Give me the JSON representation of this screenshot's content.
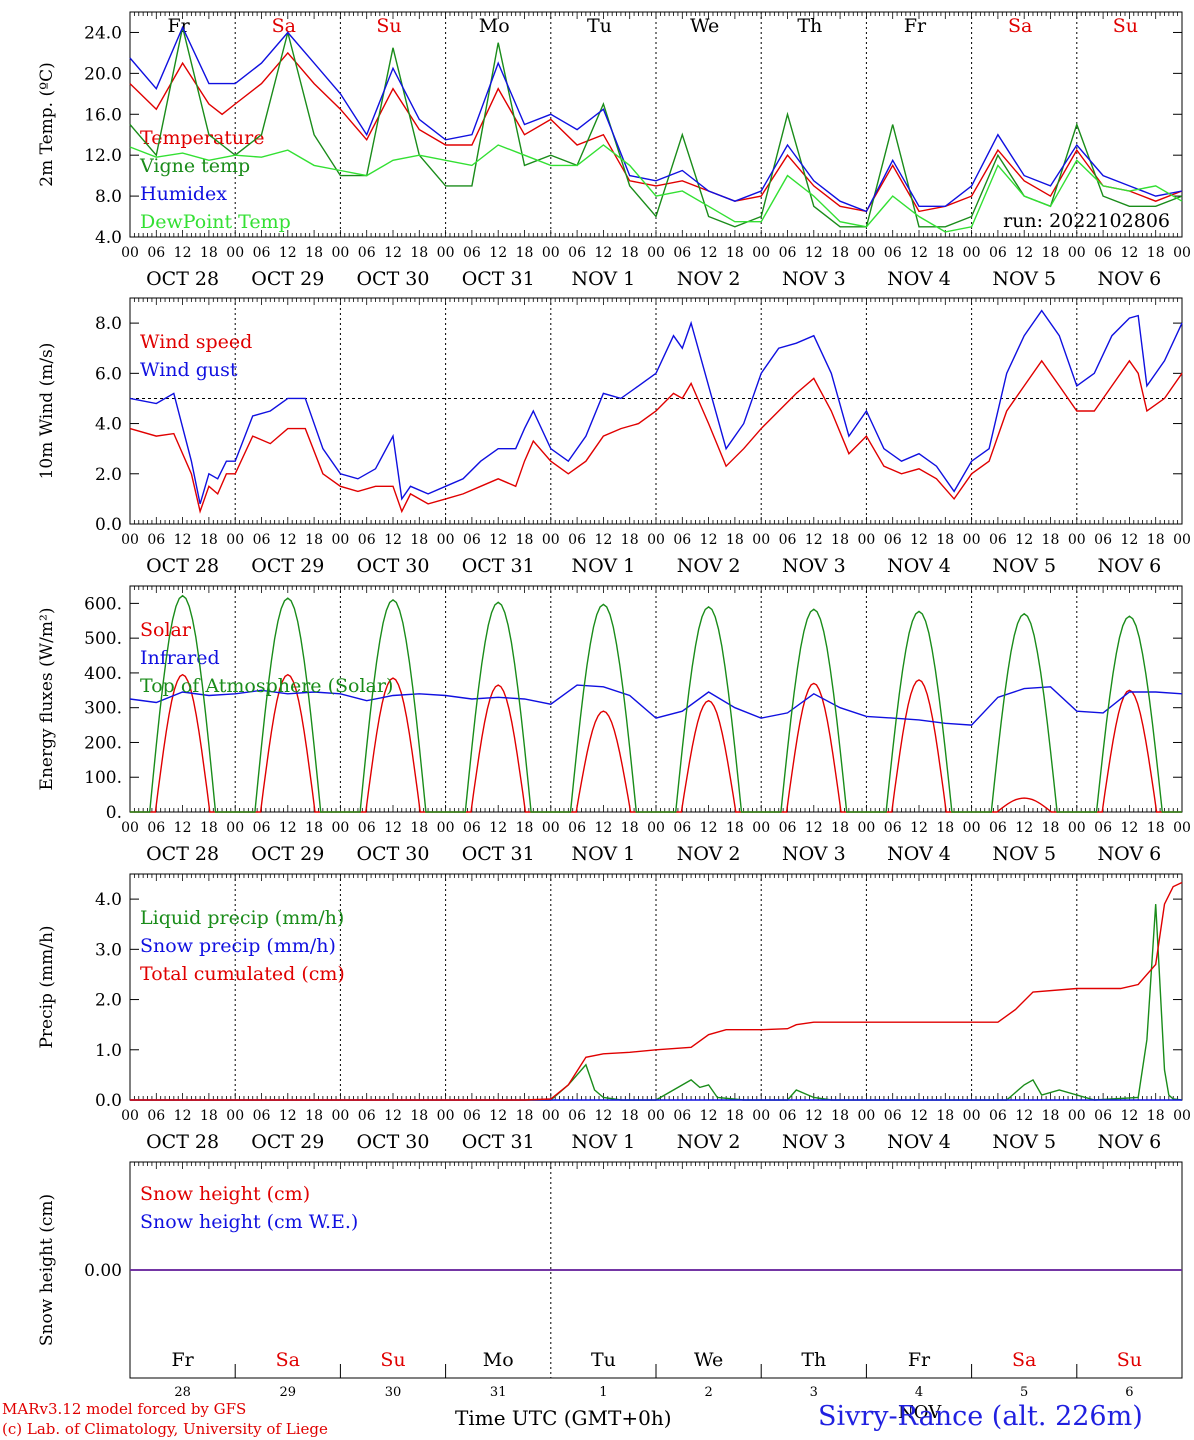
{
  "footer": {
    "credit_line1": "MARv3.12 model forced by GFS",
    "credit_line2": "(c) Lab. of Climatology, University of Liege",
    "axis_title": "Time UTC (GMT+0h)",
    "station": "Sivry-Rance (alt. 226m)",
    "month_overlap": "NOV"
  },
  "colors": {
    "red": "#e00000",
    "green": "#1a8c1a",
    "blue": "#1010e0",
    "lightgreen": "#33e033",
    "purple": "#7030a0",
    "weekend": "#e00000",
    "weekday": "#000000"
  },
  "time": {
    "days": [
      "Fr",
      "Sa",
      "Su",
      "Mo",
      "Tu",
      "We",
      "Th",
      "Fr",
      "Sa",
      "Su"
    ],
    "weekend_flags": [
      false,
      true,
      true,
      false,
      false,
      false,
      false,
      false,
      true,
      true
    ],
    "dates": [
      "OCT 28",
      "OCT 29",
      "OCT 30",
      "OCT 31",
      "NOV 1",
      "NOV 2",
      "NOV 3",
      "NOV 4",
      "NOV 5",
      "NOV 6"
    ],
    "day_numbers": [
      "28",
      "29",
      "30",
      "31",
      "1",
      "2",
      "3",
      "4",
      "5",
      "6"
    ],
    "hour_labels": [
      "00",
      "06",
      "12",
      "18"
    ],
    "end_label": "00"
  },
  "chart_data": [
    {
      "type": "line",
      "ylabel": "2m Temp. (ºC)",
      "ylim": [
        4,
        26
      ],
      "yticks": [
        "4.0",
        "8.0",
        "12.0",
        "16.0",
        "20.0",
        "24.0"
      ],
      "annotation": "run: 2022102806",
      "x_unit": "hours since OCT 28 00 UTC",
      "series": [
        {
          "name": "Temperature",
          "color": "red",
          "x": [
            0,
            6,
            12,
            18,
            21,
            24,
            30,
            36,
            42,
            48,
            54,
            60,
            66,
            72,
            78,
            84,
            90,
            96,
            102,
            108,
            114,
            120,
            126,
            132,
            138,
            144,
            150,
            156,
            162,
            168,
            174,
            180,
            186,
            192,
            198,
            204,
            210,
            216,
            222,
            228,
            234,
            240
          ],
          "y": [
            19,
            16.5,
            21,
            17,
            16,
            17,
            19,
            22,
            19,
            16.5,
            13.5,
            18.5,
            14.5,
            13,
            13,
            18.5,
            14,
            15.5,
            13,
            14,
            9.5,
            9,
            9.5,
            8.5,
            7.5,
            8,
            12,
            9,
            7,
            6.5,
            11,
            6.5,
            7,
            8,
            12.5,
            9.5,
            8,
            12.5,
            9,
            8.5,
            7.5,
            8.5
          ]
        },
        {
          "name": "Vigne temp",
          "color": "green",
          "x": [
            0,
            6,
            12,
            18,
            21,
            24,
            30,
            36,
            42,
            48,
            54,
            60,
            66,
            72,
            78,
            84,
            90,
            96,
            102,
            108,
            114,
            120,
            126,
            132,
            138,
            144,
            150,
            156,
            162,
            168,
            174,
            180,
            186,
            192,
            198,
            204,
            210,
            216,
            222,
            228,
            234,
            240
          ],
          "y": [
            15,
            12,
            24.5,
            14,
            13,
            12,
            14,
            24,
            14,
            10,
            10,
            22.5,
            12,
            9,
            9,
            23,
            11,
            12,
            11,
            17,
            9,
            6,
            14,
            6,
            5,
            6,
            16,
            7,
            5,
            5,
            15,
            5,
            5,
            6,
            12,
            8,
            7,
            15,
            8,
            7,
            7,
            8
          ]
        },
        {
          "name": "Humidex",
          "color": "blue",
          "x": [
            0,
            6,
            12,
            18,
            21,
            24,
            30,
            36,
            42,
            48,
            54,
            60,
            66,
            72,
            78,
            84,
            90,
            96,
            102,
            108,
            114,
            120,
            126,
            132,
            138,
            144,
            150,
            156,
            162,
            168,
            174,
            180,
            186,
            192,
            198,
            204,
            210,
            216,
            222,
            228,
            234,
            240
          ],
          "y": [
            21.5,
            18.5,
            24.5,
            19,
            19,
            19,
            21,
            24,
            21,
            18,
            14,
            20.5,
            15.5,
            13.5,
            14,
            21,
            15,
            16,
            14.5,
            16.5,
            10,
            9.5,
            10.5,
            8.5,
            7.5,
            8.5,
            13,
            9.5,
            7.5,
            6.5,
            11.5,
            7,
            7,
            9,
            14,
            10,
            9,
            13,
            10,
            9,
            8,
            8.5
          ]
        },
        {
          "name": "DewPoint Temp",
          "color": "lightgreen",
          "x": [
            0,
            6,
            12,
            18,
            24,
            30,
            36,
            42,
            48,
            54,
            60,
            66,
            72,
            78,
            84,
            90,
            96,
            102,
            108,
            114,
            120,
            126,
            132,
            138,
            144,
            150,
            156,
            162,
            168,
            174,
            180,
            186,
            192,
            198,
            204,
            210,
            216,
            222,
            228,
            234,
            240
          ],
          "y": [
            12.8,
            11.8,
            12.2,
            11.5,
            12,
            11.8,
            12.5,
            11,
            10.5,
            10,
            11.5,
            12,
            11.5,
            11,
            13,
            12,
            11,
            11,
            13,
            11,
            8,
            8.5,
            7,
            5.5,
            5.5,
            10,
            8,
            5.5,
            5,
            8,
            6,
            4.5,
            5,
            11,
            8,
            7,
            11.5,
            9,
            8.5,
            9,
            7.5
          ]
        }
      ]
    },
    {
      "type": "line",
      "ylabel": "10m Wind (m/s)",
      "ylim": [
        0,
        9
      ],
      "yticks": [
        "0.0",
        "2.0",
        "4.0",
        "6.0",
        "8.0"
      ],
      "reference_line": 5,
      "x_unit": "hours since OCT 28 00 UTC",
      "series": [
        {
          "name": "Wind speed",
          "color": "red",
          "x": [
            0,
            6,
            10,
            14,
            16,
            18,
            20,
            22,
            24,
            28,
            32,
            36,
            40,
            44,
            48,
            52,
            56,
            60,
            62,
            64,
            68,
            72,
            76,
            80,
            84,
            88,
            90,
            92,
            96,
            100,
            104,
            108,
            112,
            116,
            120,
            124,
            126,
            128,
            132,
            136,
            140,
            144,
            148,
            152,
            156,
            160,
            164,
            168,
            172,
            176,
            180,
            184,
            188,
            192,
            196,
            200,
            204,
            208,
            212,
            216,
            220,
            224,
            228,
            230,
            232,
            236,
            240
          ],
          "y": [
            3.8,
            3.5,
            3.6,
            2,
            0.5,
            1.5,
            1.2,
            2,
            2,
            3.5,
            3.2,
            3.8,
            3.8,
            2,
            1.5,
            1.3,
            1.5,
            1.5,
            0.5,
            1.2,
            0.8,
            1.0,
            1.2,
            1.5,
            1.8,
            1.5,
            2.5,
            3.3,
            2.5,
            2,
            2.5,
            3.5,
            3.8,
            4,
            4.5,
            5.2,
            5,
            5.6,
            4,
            2.3,
            3,
            3.8,
            4.5,
            5.2,
            5.8,
            4.5,
            2.8,
            3.5,
            2.3,
            2,
            2.2,
            1.8,
            1,
            2,
            2.5,
            4.5,
            5.5,
            6.5,
            5.5,
            4.5,
            4.5,
            5.5,
            6.5,
            6,
            4.5,
            5,
            6
          ]
        },
        {
          "name": "Wind gust",
          "color": "blue",
          "x": [
            0,
            6,
            10,
            14,
            16,
            18,
            20,
            22,
            24,
            28,
            32,
            36,
            40,
            44,
            48,
            52,
            56,
            60,
            62,
            64,
            68,
            72,
            76,
            80,
            84,
            88,
            90,
            92,
            96,
            100,
            104,
            108,
            112,
            116,
            120,
            124,
            126,
            128,
            132,
            136,
            140,
            144,
            148,
            152,
            156,
            160,
            164,
            168,
            172,
            176,
            180,
            184,
            188,
            192,
            196,
            200,
            204,
            208,
            212,
            216,
            220,
            224,
            228,
            230,
            232,
            236,
            240
          ],
          "y": [
            5,
            4.8,
            5.2,
            2.5,
            0.8,
            2,
            1.8,
            2.5,
            2.5,
            4.3,
            4.5,
            5,
            5,
            3,
            2,
            1.8,
            2.2,
            3.5,
            1,
            1.5,
            1.2,
            1.5,
            1.8,
            2.5,
            3,
            3,
            3.8,
            4.5,
            3,
            2.5,
            3.5,
            5.2,
            5,
            5.5,
            6,
            7.5,
            7,
            8,
            5.5,
            3,
            4,
            6,
            7,
            7.2,
            7.5,
            6,
            3.5,
            4.5,
            3,
            2.5,
            2.8,
            2.3,
            1.3,
            2.5,
            3,
            6,
            7.5,
            8.5,
            7.5,
            5.5,
            6,
            7.5,
            8.2,
            8.3,
            5.5,
            6.5,
            8
          ]
        }
      ]
    },
    {
      "type": "line",
      "ylabel": "Energy fluxes (W/m²)",
      "ylim": [
        0,
        650
      ],
      "yticks": [
        "0.",
        "100.",
        "200.",
        "300.",
        "400.",
        "500.",
        "600."
      ],
      "x_unit": "hours since OCT 28 00 UTC",
      "series": [
        {
          "name": "Solar",
          "color": "red",
          "peaks": [
            {
              "h": 12,
              "v": 395
            },
            {
              "h": 36,
              "v": 395
            },
            {
              "h": 60,
              "v": 385
            },
            {
              "h": 84,
              "v": 365
            },
            {
              "h": 108,
              "v": 290
            },
            {
              "h": 132,
              "v": 320
            },
            {
              "h": 156,
              "v": 370
            },
            {
              "h": 180,
              "v": 380
            },
            {
              "h": 204,
              "v": 40
            },
            {
              "h": 228,
              "v": 350
            }
          ]
        },
        {
          "name": "Infrared",
          "color": "blue",
          "x": [
            0,
            6,
            12,
            18,
            24,
            30,
            36,
            42,
            48,
            54,
            60,
            66,
            72,
            78,
            84,
            90,
            96,
            102,
            108,
            114,
            120,
            126,
            132,
            138,
            144,
            150,
            156,
            162,
            168,
            174,
            180,
            186,
            192,
            198,
            204,
            210,
            216,
            222,
            228,
            234,
            240
          ],
          "y": [
            325,
            315,
            345,
            335,
            340,
            350,
            340,
            345,
            340,
            320,
            335,
            340,
            335,
            325,
            330,
            325,
            310,
            365,
            360,
            335,
            270,
            290,
            345,
            300,
            270,
            285,
            340,
            300,
            275,
            270,
            265,
            255,
            250,
            330,
            355,
            360,
            290,
            285,
            345,
            345,
            340
          ]
        },
        {
          "name": "Top of Atmosphere (Solar)",
          "color": "green",
          "peaks": [
            {
              "h": 12,
              "v": 622
            },
            {
              "h": 36,
              "v": 615
            },
            {
              "h": 60,
              "v": 610
            },
            {
              "h": 84,
              "v": 603
            },
            {
              "h": 108,
              "v": 597
            },
            {
              "h": 132,
              "v": 590
            },
            {
              "h": 156,
              "v": 583
            },
            {
              "h": 180,
              "v": 577
            },
            {
              "h": 204,
              "v": 570
            },
            {
              "h": 228,
              "v": 563
            }
          ]
        }
      ]
    },
    {
      "type": "line",
      "ylabel": "Precip (mm/h)",
      "ylim": [
        0,
        4.5
      ],
      "yticks": [
        "0.0",
        "1.0",
        "2.0",
        "3.0",
        "4.0"
      ],
      "x_unit": "hours since OCT 28 00 UTC",
      "series": [
        {
          "name": "Liquid precip (mm/h)",
          "color": "green",
          "x": [
            0,
            96,
            100,
            104,
            106,
            108,
            112,
            120,
            128,
            130,
            132,
            134,
            140,
            150,
            152,
            156,
            160,
            200,
            204,
            206,
            208,
            212,
            220,
            230,
            232,
            234,
            236,
            237,
            238,
            240
          ],
          "y": [
            0,
            0,
            0.3,
            0.7,
            0.2,
            0.05,
            0,
            0,
            0.4,
            0.25,
            0.3,
            0.05,
            0,
            0,
            0.2,
            0.05,
            0,
            0,
            0.3,
            0.4,
            0.1,
            0.2,
            0,
            0.05,
            1.2,
            3.9,
            0.6,
            0.1,
            0.02,
            0
          ]
        },
        {
          "name": "Snow precip (mm/h)",
          "color": "blue",
          "x": [
            0,
            240
          ],
          "y": [
            0,
            0
          ]
        },
        {
          "name": "Total cumulated (cm)",
          "color": "red",
          "x": [
            0,
            90,
            96,
            100,
            104,
            108,
            114,
            120,
            128,
            132,
            136,
            144,
            150,
            152,
            156,
            168,
            180,
            190,
            198,
            202,
            206,
            216,
            226,
            230,
            234,
            236,
            238,
            240
          ],
          "y": [
            0,
            0,
            0.02,
            0.3,
            0.85,
            0.92,
            0.95,
            1.0,
            1.05,
            1.3,
            1.4,
            1.4,
            1.42,
            1.5,
            1.55,
            1.55,
            1.55,
            1.55,
            1.55,
            1.8,
            2.15,
            2.22,
            2.22,
            2.3,
            2.7,
            3.9,
            4.25,
            4.33
          ]
        }
      ]
    },
    {
      "type": "line",
      "ylabel": "Snow height (cm)",
      "ylim": [
        -1,
        1
      ],
      "yticks": [
        "0.00"
      ],
      "x_unit": "hours since OCT 28 00 UTC",
      "series": [
        {
          "name": "Snow height (cm)",
          "color": "red",
          "x": [
            0,
            240
          ],
          "y": [
            0,
            0
          ]
        },
        {
          "name": "Snow height (cm W.E.)",
          "color": "blue",
          "x": [
            0,
            240
          ],
          "y": [
            0,
            0
          ]
        }
      ]
    }
  ]
}
